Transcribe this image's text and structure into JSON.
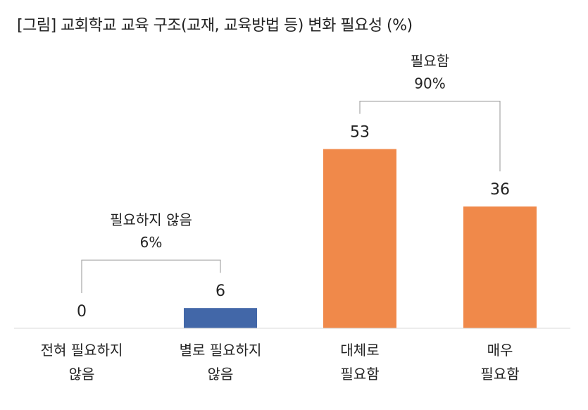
{
  "title": "[그림] 교회학교 교육 구조(교재, 교육방법 등) 변화 필요성 (%)",
  "chart_data": {
    "type": "bar",
    "categories": [
      "전혀 필요하지 않음",
      "별로 필요하지 않음",
      "대체로 필요함",
      "매우 필요함"
    ],
    "category_lines": [
      [
        "전혀 필요하지",
        "않음"
      ],
      [
        "별로 필요하지",
        "않음"
      ],
      [
        "대체로",
        "필요함"
      ],
      [
        "매우",
        "필요함"
      ]
    ],
    "values": [
      0,
      6,
      53,
      36
    ],
    "value_labels": [
      "0",
      "6",
      "53",
      "36"
    ],
    "ylim": [
      0,
      60
    ],
    "colors": [
      "#4267a8",
      "#4267a8",
      "#f0894a",
      "#f0894a"
    ],
    "groups": [
      {
        "label": "필요하지 않음",
        "value_label": "6%",
        "from": 0,
        "to": 1
      },
      {
        "label": "필요함",
        "value_label": "90%",
        "from": 2,
        "to": 3
      }
    ]
  },
  "colors": {
    "negative": "#4267a8",
    "positive": "#f0894a",
    "axis": "#d9d9d9",
    "bracket": "#a6a6a6"
  }
}
